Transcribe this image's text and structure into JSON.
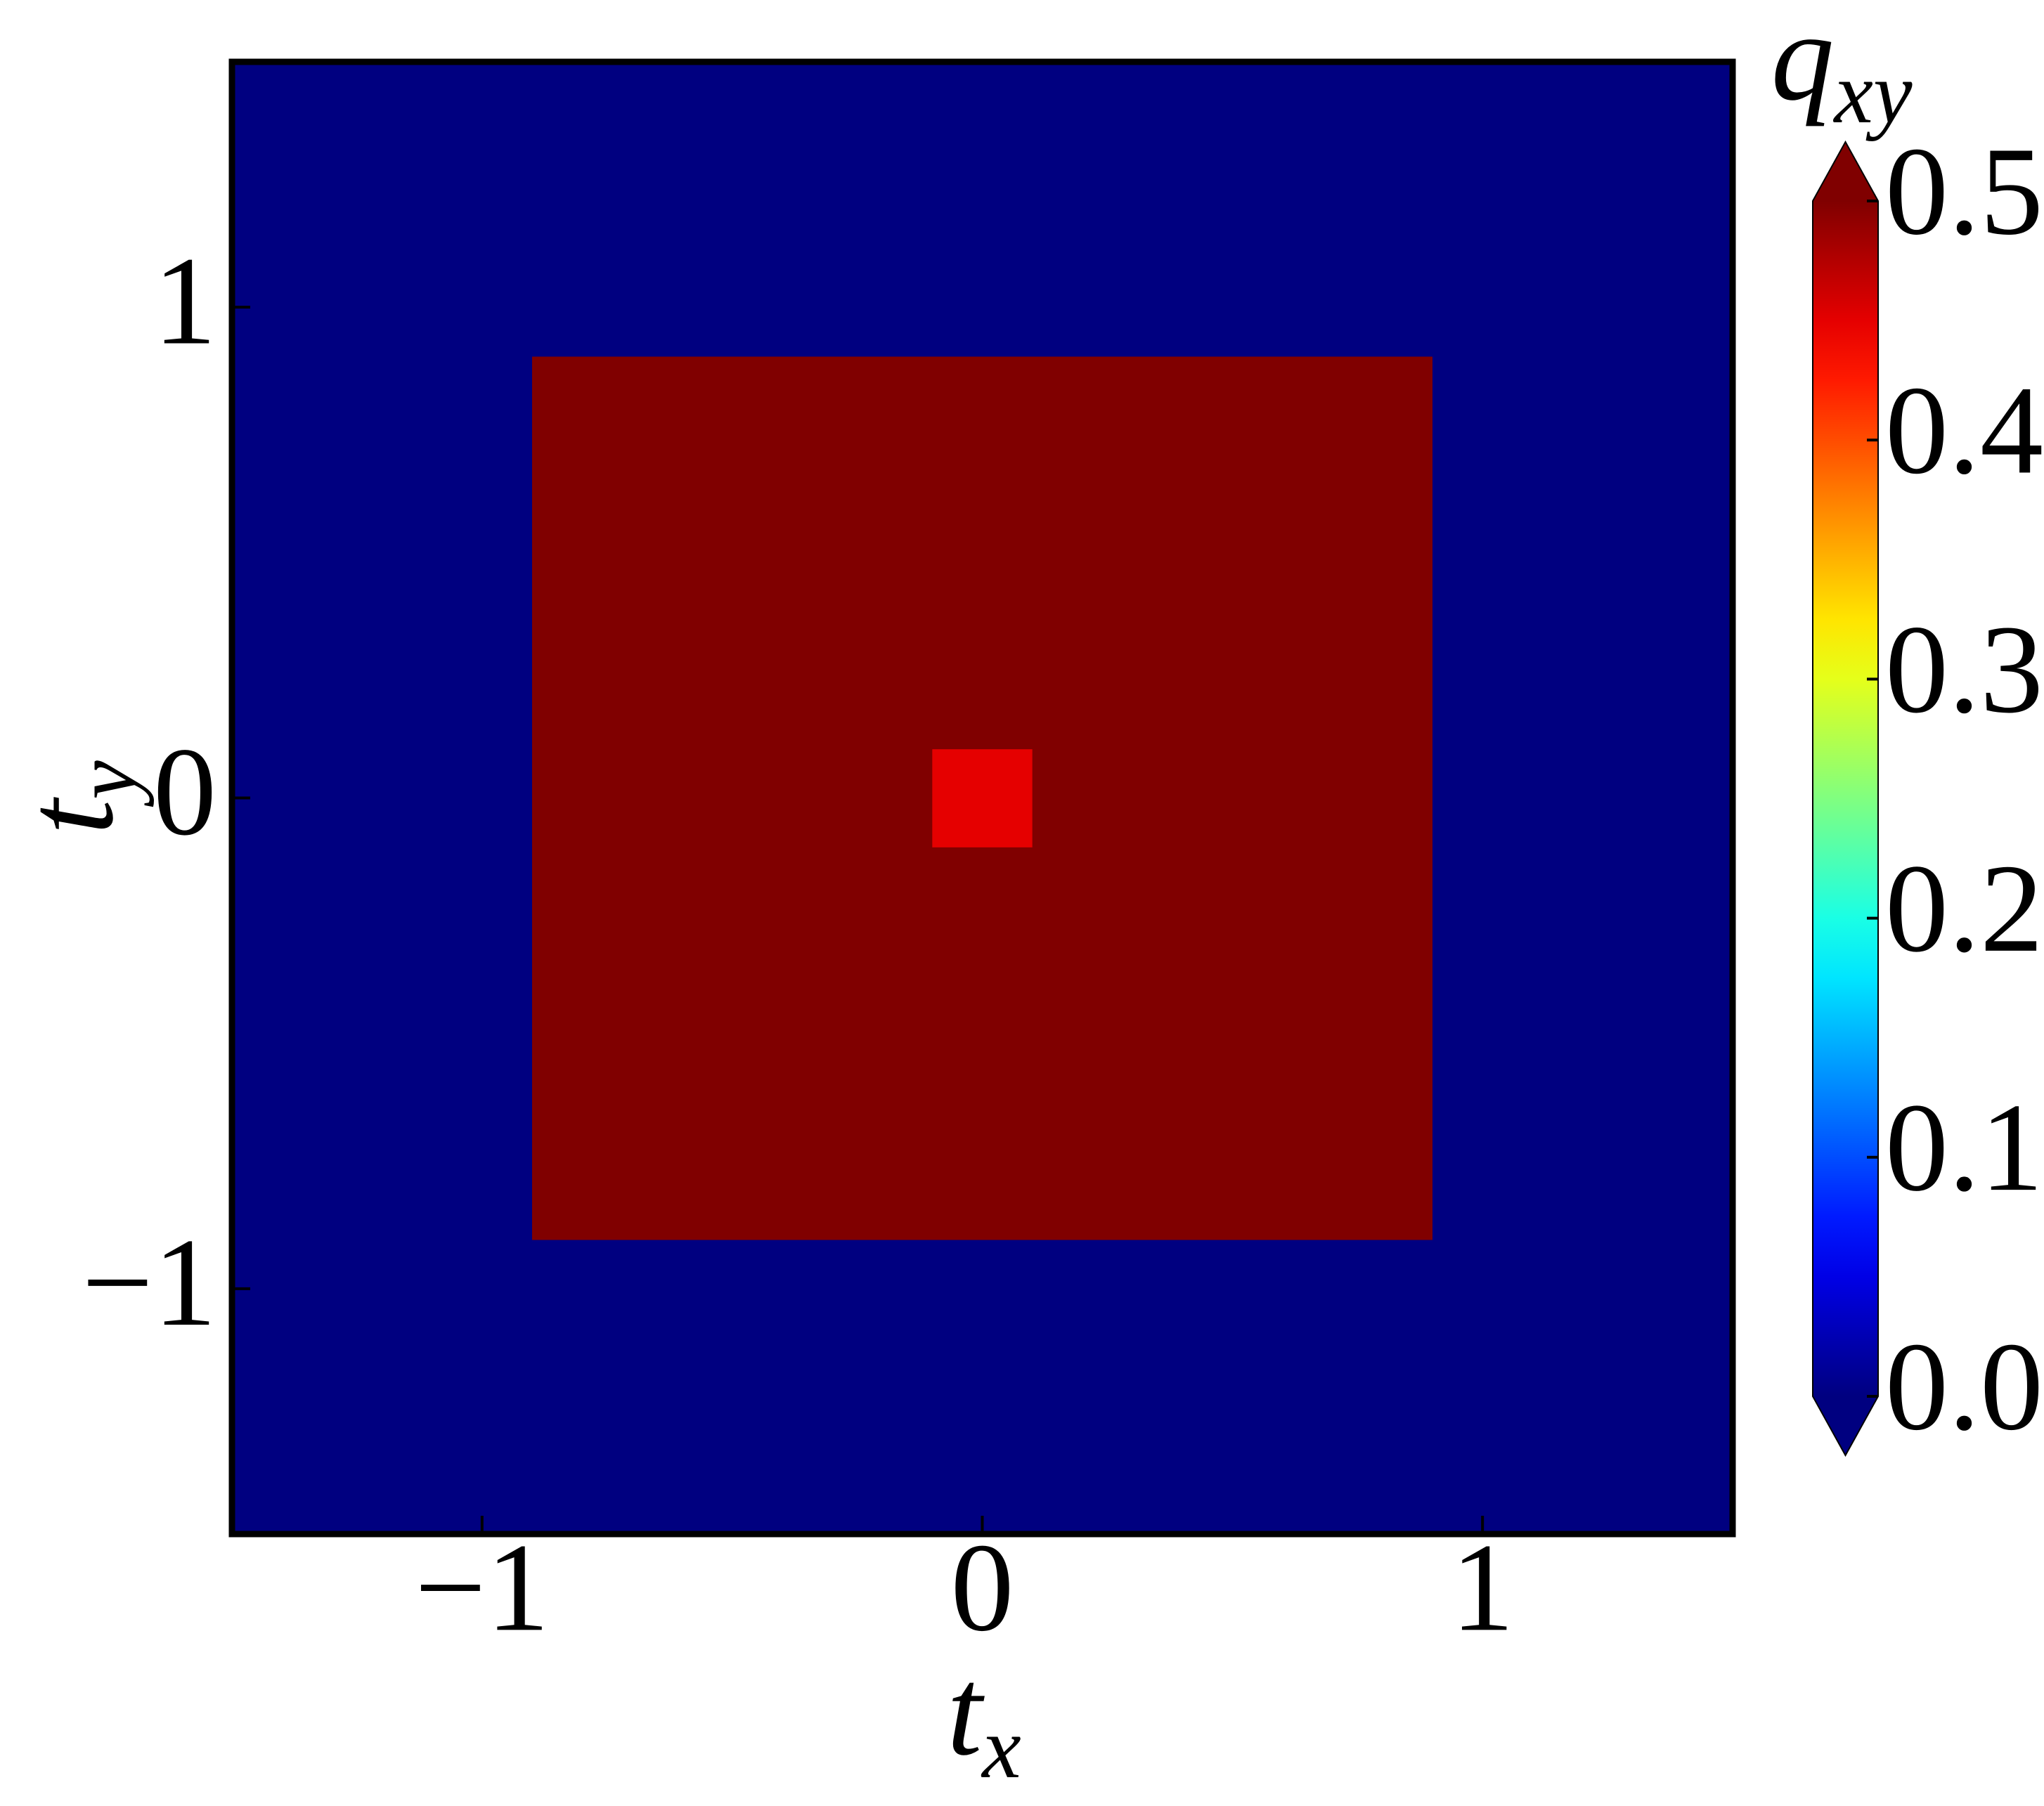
{
  "chart_data": {
    "type": "heatmap",
    "xlabel": {
      "base": "t",
      "sub": "x"
    },
    "ylabel": {
      "base": "t",
      "sub": "y"
    },
    "colorbar_label": {
      "base": "q",
      "sub": "xy"
    },
    "colormap": "jet",
    "vmin": 0,
    "vmax": 0.5,
    "extend": "both",
    "cticks": [
      {
        "value": 0,
        "label": "0.0"
      },
      0.1,
      0.2,
      0.3,
      0.4,
      0.5
    ],
    "xlim": [
      -1.5,
      1.5
    ],
    "ylim": [
      -1.5,
      1.5
    ],
    "xticks": [
      {
        "value": -1,
        "label": "−1"
      },
      0,
      1
    ],
    "yticks": [
      {
        "value": -1,
        "label": "−1"
      },
      0,
      1
    ],
    "xbins": [
      -1.5,
      -1.3,
      -1.1,
      -0.9,
      -0.7,
      -0.5,
      -0.3,
      -0.1,
      0.1,
      0.3,
      0.5,
      0.7,
      0.9,
      1.1,
      1.3,
      1.5
    ],
    "ybins": [
      -1.5,
      -1.3,
      -1.1,
      -0.9,
      -0.7,
      -0.5,
      -0.3,
      -0.1,
      0.1,
      0.3,
      0.5,
      0.7,
      0.9,
      1.1,
      1.3,
      1.5
    ],
    "z": [
      [
        0,
        0,
        0,
        0,
        0,
        0,
        0,
        0,
        0,
        0,
        0,
        0,
        0,
        0,
        0
      ],
      [
        0,
        0,
        0,
        0,
        0,
        0,
        0,
        0,
        0,
        0,
        0,
        0,
        0,
        0,
        0
      ],
      [
        0,
        0,
        0,
        0,
        0,
        0,
        0,
        0,
        0,
        0,
        0,
        0,
        0,
        0,
        0
      ],
      [
        0,
        0,
        0,
        0.5,
        0.5,
        0.5,
        0.5,
        0.5,
        0.5,
        0.5,
        0.5,
        0.5,
        0,
        0,
        0
      ],
      [
        0,
        0,
        0,
        0.5,
        0.5,
        0.5,
        0.5,
        0.5,
        0.5,
        0.5,
        0.5,
        0.5,
        0,
        0,
        0
      ],
      [
        0,
        0,
        0,
        0.5,
        0.5,
        0.5,
        0.5,
        0.5,
        0.5,
        0.5,
        0.5,
        0.5,
        0,
        0,
        0
      ],
      [
        0,
        0,
        0,
        0.5,
        0.5,
        0.5,
        0.5,
        0.5,
        0.5,
        0.5,
        0.5,
        0.5,
        0,
        0,
        0
      ],
      [
        0,
        0,
        0,
        0.5,
        0.5,
        0.5,
        0.5,
        0.45,
        0.5,
        0.5,
        0.5,
        0.5,
        0,
        0,
        0
      ],
      [
        0,
        0,
        0,
        0.5,
        0.5,
        0.5,
        0.5,
        0.5,
        0.5,
        0.5,
        0.5,
        0.5,
        0,
        0,
        0
      ],
      [
        0,
        0,
        0,
        0.5,
        0.5,
        0.5,
        0.5,
        0.5,
        0.5,
        0.5,
        0.5,
        0.5,
        0,
        0,
        0
      ],
      [
        0,
        0,
        0,
        0.5,
        0.5,
        0.5,
        0.5,
        0.5,
        0.5,
        0.5,
        0.5,
        0.5,
        0,
        0,
        0
      ],
      [
        0,
        0,
        0,
        0.5,
        0.5,
        0.5,
        0.5,
        0.5,
        0.5,
        0.5,
        0.5,
        0.5,
        0,
        0,
        0
      ],
      [
        0,
        0,
        0,
        0,
        0,
        0,
        0,
        0,
        0,
        0,
        0,
        0,
        0,
        0,
        0
      ],
      [
        0,
        0,
        0,
        0,
        0,
        0,
        0,
        0,
        0,
        0,
        0,
        0,
        0,
        0,
        0
      ],
      [
        0,
        0,
        0,
        0,
        0,
        0,
        0,
        0,
        0,
        0,
        0,
        0,
        0,
        0,
        0
      ]
    ]
  }
}
